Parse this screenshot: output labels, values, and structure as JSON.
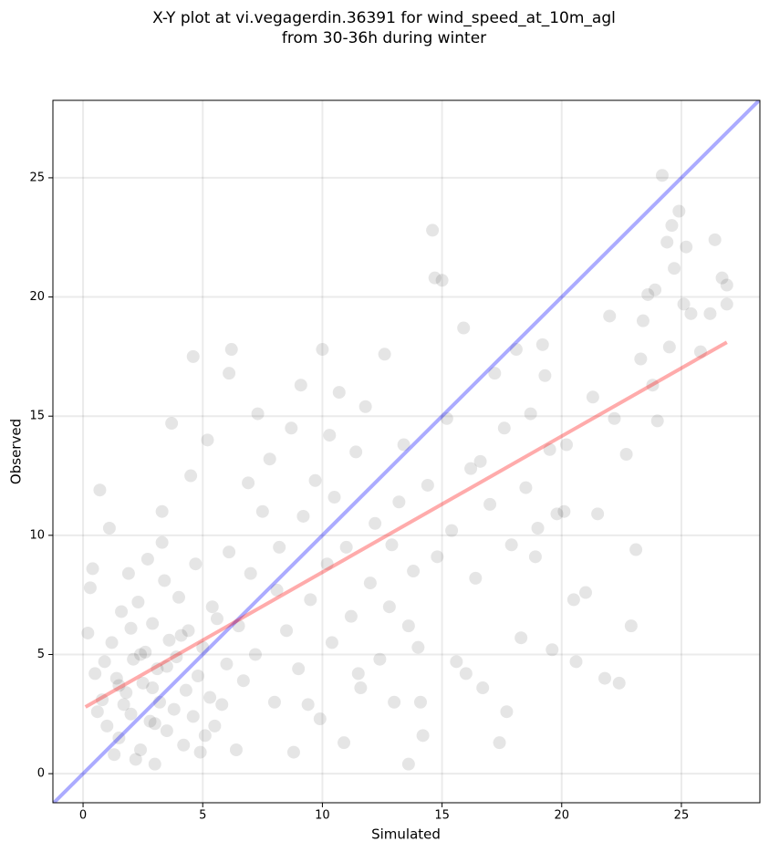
{
  "chart_data": {
    "type": "scatter",
    "title": [
      "X-Y plot at vi.vegagerdin.36391 for wind_speed_at_10m_agl",
      "from 30-36h during winter"
    ],
    "x_label": "Simulated",
    "y_label": "Observed",
    "xlim": [
      -1.26,
      28.28
    ],
    "ylim": [
      -1.22,
      28.25
    ],
    "xticks": [
      0,
      5,
      10,
      15,
      20,
      25
    ],
    "yticks": [
      0,
      5,
      10,
      15,
      20,
      25
    ],
    "grid": true,
    "color": "#000000",
    "opacity": 0.1,
    "x": [
      0.2,
      0.5,
      0.8,
      1.0,
      1.2,
      1.4,
      1.5,
      1.6,
      1.8,
      2.0,
      2.1,
      2.3,
      2.4,
      2.5,
      2.6,
      2.8,
      2.9,
      3.0,
      3.1,
      3.2,
      3.4,
      3.5,
      3.6,
      3.8,
      3.9,
      4.0,
      4.2,
      4.3,
      4.4,
      4.6,
      4.7,
      4.8,
      5.0,
      5.1,
      5.3,
      5.4,
      5.6,
      5.8,
      6.0,
      6.1,
      0.7,
      1.1,
      1.9,
      2.7,
      3.3,
      3.7,
      4.5,
      4.6,
      5.2,
      6.2,
      6.1,
      0.3,
      0.6,
      1.3,
      2.2,
      1.7,
      2.9,
      3.5,
      4.1,
      0.9,
      2.4,
      3.0,
      1.5,
      2.0,
      4.9,
      5.5,
      6.4,
      6.7,
      3.3,
      0.4,
      6.5,
      7.0,
      7.2,
      7.5,
      7.8,
      8.0,
      8.2,
      8.5,
      8.7,
      9.0,
      9.2,
      9.5,
      9.7,
      9.9,
      10.0,
      10.2,
      10.4,
      10.5,
      10.7,
      10.9,
      11.0,
      11.2,
      11.4,
      11.6,
      11.8,
      12.0,
      12.2,
      12.4,
      12.6,
      12.8,
      13.0,
      13.2,
      13.4,
      13.6,
      13.8,
      14.0,
      14.2,
      14.4,
      14.6,
      14.7,
      14.8,
      15.0,
      15.2,
      15.4,
      15.6,
      8.8,
      9.4,
      7.3,
      6.9,
      8.1,
      11.5,
      12.9,
      10.3,
      9.1,
      13.6,
      14.1,
      15.9,
      16.2,
      16.4,
      16.7,
      17.0,
      17.2,
      17.4,
      17.6,
      17.9,
      18.1,
      18.3,
      18.5,
      18.7,
      19.0,
      19.2,
      19.5,
      19.6,
      19.8,
      20.2,
      20.5,
      20.6,
      21.0,
      21.3,
      21.5,
      21.8,
      22.2,
      22.4,
      22.7,
      22.9,
      23.1,
      23.3,
      23.4,
      23.6,
      23.8,
      24.0,
      24.2,
      24.4,
      24.6,
      24.7,
      24.9,
      25.1,
      25.2,
      25.4,
      25.8,
      26.2,
      26.4,
      26.7,
      26.9,
      26.9,
      22.0,
      23.9,
      24.5,
      16.6,
      18.9,
      20.1,
      17.7,
      16.0,
      19.3
    ],
    "values": [
      5.9,
      4.2,
      3.1,
      2.0,
      5.5,
      4.0,
      1.5,
      6.8,
      3.4,
      2.5,
      4.8,
      7.2,
      1.0,
      3.8,
      5.1,
      2.2,
      6.3,
      0.4,
      4.4,
      3.0,
      8.1,
      1.8,
      5.6,
      2.7,
      4.9,
      7.4,
      1.2,
      3.5,
      6.0,
      2.4,
      8.8,
      4.1,
      5.3,
      1.6,
      3.2,
      7.0,
      6.5,
      2.9,
      4.6,
      9.3,
      11.9,
      10.3,
      8.4,
      9.0,
      11.0,
      14.7,
      12.5,
      17.5,
      14.0,
      17.8,
      16.8,
      7.8,
      2.6,
      0.8,
      0.6,
      2.9,
      3.6,
      4.5,
      5.8,
      4.7,
      5.0,
      2.1,
      3.7,
      6.1,
      0.9,
      2.0,
      1.0,
      3.9,
      9.7,
      8.6,
      6.2,
      8.4,
      5.0,
      11.0,
      13.2,
      3.0,
      9.5,
      6.0,
      14.5,
      4.4,
      10.8,
      7.3,
      12.3,
      2.3,
      17.8,
      8.8,
      5.5,
      11.6,
      16.0,
      1.3,
      9.5,
      6.6,
      13.5,
      3.6,
      15.4,
      8.0,
      10.5,
      4.8,
      17.6,
      7.0,
      3.0,
      11.4,
      13.8,
      6.2,
      8.5,
      5.3,
      1.6,
      12.1,
      22.8,
      20.8,
      9.1,
      20.7,
      14.9,
      10.2,
      4.7,
      0.9,
      2.9,
      15.1,
      12.2,
      7.7,
      4.2,
      9.6,
      14.2,
      16.3,
      0.4,
      3.0,
      18.7,
      12.8,
      8.2,
      3.6,
      11.3,
      16.8,
      1.3,
      14.5,
      9.6,
      17.8,
      5.7,
      12.0,
      15.1,
      10.3,
      18.0,
      13.6,
      5.2,
      10.9,
      13.8,
      7.3,
      4.7,
      7.6,
      15.8,
      10.9,
      4.0,
      14.9,
      3.8,
      13.4,
      6.2,
      9.4,
      17.4,
      19.0,
      20.1,
      16.3,
      14.8,
      25.1,
      22.3,
      23.0,
      21.2,
      23.6,
      19.7,
      22.1,
      19.3,
      17.7,
      19.3,
      22.4,
      20.8,
      20.5,
      19.7,
      19.2,
      20.3,
      17.9,
      13.1,
      9.1,
      11.0,
      2.6,
      4.2,
      16.7
    ],
    "lines": [
      {
        "color": "#0000ff",
        "opacity": 0.33,
        "x": [
          -1.26,
          28.28
        ],
        "values": [
          -1.26,
          28.28
        ]
      },
      {
        "color": "#ff0000",
        "opacity": 0.33,
        "x": [
          0.1,
          26.9
        ],
        "values": [
          2.8,
          18.1
        ]
      }
    ]
  }
}
